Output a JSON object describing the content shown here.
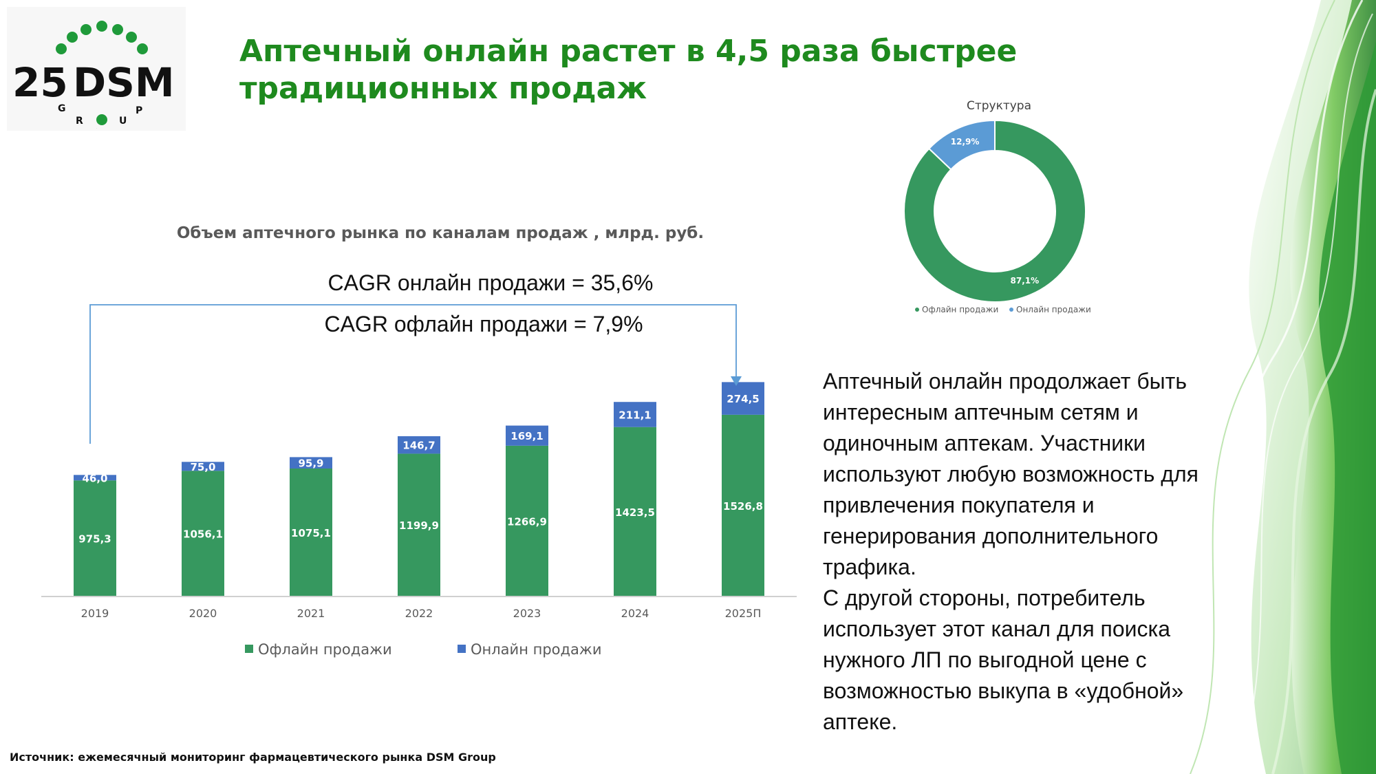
{
  "logo": {
    "number": "25",
    "brand": "DSM",
    "sub": [
      "G",
      "R",
      "O",
      "U",
      "P"
    ]
  },
  "title": {
    "line1": "Аптечный онлайн растет в 4,5 раза быстрее",
    "line2": "традиционных продаж"
  },
  "cagr": {
    "online": "CAGR онлайн продажи = 35,6%",
    "offline": "CAGR офлайн продажи = 7,9%"
  },
  "body_text": {
    "para1": "Аптечный онлайн продолжает быть интересным аптечным сетям и одиночным аптекам. Участники используют любую возможность для привлечения покупателя и генерирования дополнительного трафика.",
    "para2": "С другой стороны, потребитель использует этот канал для поиска нужного ЛП по выгодной цене с возможностью выкупа в «удобной» аптеке."
  },
  "source": "Источник: ежемесячный мониторинг фармацевтического рынка DSM Group",
  "colors": {
    "title_green": "#1e8a1e",
    "offline": "#36985f",
    "online": "#4472c4",
    "donut_online": "#5b9bd5"
  },
  "chart_data": [
    {
      "type": "bar",
      "stacked": true,
      "title": "Объем аптечного рынка по каналам продаж , млрд. руб.",
      "categories": [
        "2019",
        "2020",
        "2021",
        "2022",
        "2023",
        "2024",
        "2025П"
      ],
      "series": [
        {
          "name": "Офлайн продажи",
          "values": [
            975.3,
            1056.1,
            1075.1,
            1199.9,
            1266.9,
            1423.5,
            1526.8
          ],
          "labels": [
            "975,3",
            "1056,1",
            "1075,1",
            "1199,9",
            "1266,9",
            "1423,5",
            "1526,8"
          ]
        },
        {
          "name": "Онлайн продажи",
          "values": [
            46.0,
            75.0,
            95.9,
            146.7,
            169.1,
            211.1,
            274.5
          ],
          "labels": [
            "46,0",
            "75,0",
            "95,9",
            "146,7",
            "169,1",
            "211,1",
            "274,5"
          ]
        }
      ],
      "ylim": [
        0,
        1900
      ],
      "grid": false,
      "legend": "bottom"
    },
    {
      "type": "pie",
      "donut": true,
      "title": "Структура",
      "categories": [
        "Офлайн продажи",
        "Онлайн продажи"
      ],
      "values": [
        87.1,
        12.9
      ],
      "labels": [
        "87,1%",
        "12,9%"
      ],
      "legend": "bottom"
    }
  ]
}
